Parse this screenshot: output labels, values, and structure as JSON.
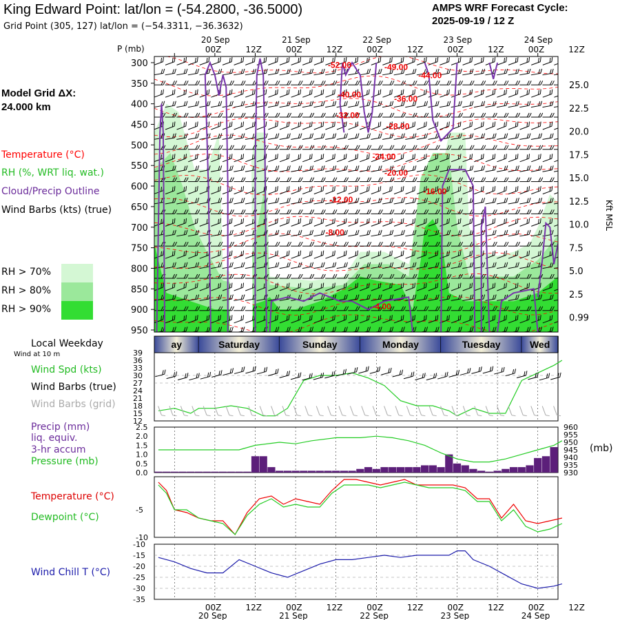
{
  "header": {
    "title": "King Edward Point:  lat/lon = (-54.2800, -36.5000)",
    "subtitle": "Grid Point (305, 127) lat/lon = (−54.3311, −36.3632)",
    "cycle_line1": "AMPS WRF Forecast Cycle:",
    "cycle_line2": "2025-09-19 / 12  Z"
  },
  "legend": {
    "model_grid_label": "Model Grid ΔX:",
    "model_grid_value": " 24.000 km",
    "temperature": "Temperature (°C)",
    "rh": "RH (%, WRT liq. wat.)",
    "cloud": "Cloud/Precip Outline",
    "wind": "Wind Barbs (kts) (true)",
    "rh70": "RH > 70%",
    "rh80": "RH > 80%",
    "rh90": "RH > 90%",
    "local_weekday": "Local Weekday",
    "wind_10m": "Wind at 10 m",
    "wind_spd": "Wind Spd (kts)",
    "wind_barbs_true": "Wind Barbs (true)",
    "wind_barbs_grid": "Wind Barbs (grid)",
    "precip1": "Precip (mm)",
    "precip2": "liq. equiv.",
    "precip3": "3-hr accum",
    "pressure": "Pressure (mb)",
    "pressure_unit": "(mb)",
    "temp2": "Temperature (°C)",
    "dewpoint": "Dewpoint (°C)",
    "windchill": "Wind Chill T (°C)"
  },
  "colors": {
    "rh70": "#d4f7d4",
    "rh80": "#9be89b",
    "rh90": "#33dd33",
    "temperature": "#ff0000",
    "dewpoint": "#22cc22",
    "cloud": "#7733aa",
    "precip": "#5c1f7a",
    "windchill": "#1a1aaa",
    "day_band_dark": "#3a4a9a",
    "day_band_light": "#f4f0d8",
    "grid_barbs": "#aaaaaa"
  },
  "time_axis": {
    "top_dates": [
      "20 Sep",
      "21 Sep",
      "22 Sep",
      "23 Sep",
      "24 Sep"
    ],
    "hour_labels": [
      "00Z",
      "12Z",
      "00Z",
      "12Z",
      "00Z",
      "12Z",
      "00Z",
      "12Z",
      "00Z",
      "12Z"
    ],
    "bottom_hours": [
      "00Z",
      "12Z",
      "00Z",
      "12Z",
      "00Z",
      "12Z",
      "00Z",
      "12Z",
      "00Z",
      "12Z"
    ],
    "bottom_dates": [
      "20 Sep",
      "21 Sep",
      "22 Sep",
      "23 Sep",
      "24 Sep"
    ]
  },
  "weekdays": [
    "ay",
    "Saturday",
    "Sunday",
    "Monday",
    "Tuesday",
    "Wed"
  ],
  "chart_data": [
    {
      "type": "heatmap",
      "name": "time-height cross section",
      "y_title": "P (mb)",
      "y_ticks": [
        "300",
        "350",
        "400",
        "450",
        "500",
        "550",
        "600",
        "650",
        "700",
        "750",
        "800",
        "850",
        "900",
        "950"
      ],
      "right_axis_title": "Kft MSL",
      "right_ticks": [
        "25.0",
        "22.5",
        "20.0",
        "17.5",
        "15.0",
        "12.5",
        "10.0",
        "7.5",
        "5.0",
        "2.5",
        "0.99"
      ],
      "ylim": [
        950,
        300
      ],
      "temperature_labels": [
        {
          "text": "-52.00",
          "day": 1.4,
          "p": 313
        },
        {
          "text": "-49.00",
          "day": 2.1,
          "p": 318
        },
        {
          "text": "-44.00",
          "day": 2.52,
          "p": 338
        },
        {
          "text": "-40.00",
          "day": 1.52,
          "p": 385
        },
        {
          "text": "-36.00",
          "day": 2.22,
          "p": 395
        },
        {
          "text": "-32.00",
          "day": 1.5,
          "p": 435
        },
        {
          "text": "-28.00",
          "day": 2.12,
          "p": 462
        },
        {
          "text": "-24.00",
          "day": 1.95,
          "p": 535
        },
        {
          "text": "-20.00",
          "day": 2.1,
          "p": 575
        },
        {
          "text": "-16.00",
          "day": 2.58,
          "p": 620
        },
        {
          "text": "-12.00",
          "day": 1.42,
          "p": 640
        },
        {
          "text": "-8.00",
          "day": 1.37,
          "p": 720
        },
        {
          "text": "-4.00",
          "day": 1.95,
          "p": 900
        }
      ]
    },
    {
      "type": "line",
      "name": "wind speed",
      "ylabel": "Wind Spd (kts)",
      "ylim": [
        12,
        39
      ],
      "y_ticks": [
        12,
        15,
        18,
        21,
        24,
        27,
        30,
        33,
        36,
        39
      ],
      "series": [
        {
          "name": "Wind Spd (kts)",
          "x": [
            -0.7,
            -0.5,
            -0.3,
            -0.2,
            0,
            0.2,
            0.4,
            0.6,
            0.75,
            0.9,
            1.1,
            1.3,
            1.5,
            1.7,
            1.9,
            2.1,
            2.3,
            2.5,
            2.7,
            2.9,
            3.0,
            3.2,
            3.4,
            3.6,
            3.8,
            4.0,
            4.2,
            4.3
          ],
          "values": [
            16,
            17,
            15,
            17,
            17,
            18,
            17,
            14,
            14,
            17,
            28,
            30,
            30,
            31,
            29,
            26,
            20,
            18,
            18,
            16,
            14,
            17,
            15,
            15,
            28,
            31,
            34,
            36
          ]
        }
      ]
    },
    {
      "type": "bar",
      "name": "precip and pressure",
      "ylabel": "Precip (mm)",
      "ylim": [
        0,
        2.5
      ],
      "y_ticks": [
        0.0,
        0.5,
        1.0,
        1.5,
        2.0,
        2.5
      ],
      "y2label": "Pressure (mb)",
      "y2lim": [
        930,
        960
      ],
      "y2_ticks": [
        930,
        935,
        940,
        945,
        950,
        955,
        960
      ],
      "precip_x": [
        -0.7,
        -0.6,
        -0.5,
        -0.4,
        -0.3,
        -0.2,
        -0.1,
        0,
        0.1,
        0.2,
        0.3,
        0.4,
        0.5,
        0.6,
        0.7,
        0.8,
        0.9,
        1.0,
        1.1,
        1.2,
        1.3,
        1.4,
        1.5,
        1.6,
        1.7,
        1.8,
        1.9,
        2.0,
        2.1,
        2.2,
        2.3,
        2.4,
        2.5,
        2.6,
        2.7,
        2.8,
        2.9,
        3.0,
        3.1,
        3.2,
        3.3,
        3.4,
        3.5,
        3.6,
        3.7,
        3.8,
        3.9,
        4.0,
        4.1,
        4.2
      ],
      "precip": [
        0.05,
        0.05,
        0.05,
        0.05,
        0.05,
        0.05,
        0.05,
        0.05,
        0.05,
        0.05,
        0.05,
        0.05,
        0.9,
        0.9,
        0.3,
        0.1,
        0.1,
        0.1,
        0.1,
        0.1,
        0.1,
        0.1,
        0.1,
        0.1,
        0.1,
        0.2,
        0.3,
        0.2,
        0.3,
        0.3,
        0.3,
        0.3,
        0.3,
        0.4,
        0.4,
        0.3,
        1.0,
        0.5,
        0.4,
        0.2,
        0.1,
        0.05,
        0.1,
        0.2,
        0.3,
        0.3,
        0.4,
        0.8,
        0.9,
        1.4
      ],
      "pressure_x": [
        -0.7,
        -0.3,
        0.0,
        0.3,
        0.5,
        0.8,
        1.0,
        1.2,
        1.5,
        1.8,
        2.0,
        2.2,
        2.4,
        2.6,
        2.8,
        3.0,
        3.2,
        3.4,
        3.6,
        3.8,
        4.0,
        4.2,
        4.3
      ],
      "pressure": [
        945,
        945,
        945,
        945,
        948,
        950,
        949,
        951,
        953,
        953,
        954,
        953,
        951,
        948,
        943,
        939,
        937,
        937,
        939,
        942,
        945,
        948,
        951
      ]
    },
    {
      "type": "line",
      "name": "temperature and dewpoint",
      "ylim": [
        -10,
        1
      ],
      "y_ticks": [
        -10,
        -5
      ],
      "series": [
        {
          "name": "Temperature (°C)",
          "x": [
            -0.7,
            -0.6,
            -0.5,
            -0.35,
            -0.2,
            -0.05,
            0.1,
            0.25,
            0.4,
            0.55,
            0.7,
            0.85,
            1.0,
            1.15,
            1.3,
            1.45,
            1.6,
            1.75,
            1.9,
            2.05,
            2.2,
            2.35,
            2.5,
            2.65,
            2.8,
            2.95,
            3.1,
            3.25,
            3.4,
            3.55,
            3.7,
            3.85,
            4.0,
            4.15,
            4.3
          ],
          "values": [
            0,
            -1.5,
            -5,
            -5.5,
            -6.5,
            -7,
            -7,
            -9.5,
            -5.5,
            -3,
            -2.5,
            -4,
            -3,
            -3.5,
            -4,
            -1.5,
            0.5,
            0.5,
            0,
            -0.5,
            0,
            0.5,
            -0.5,
            -0.5,
            -0.5,
            -0.5,
            -1,
            -3,
            -3,
            -6.5,
            -4,
            -7,
            -7.5,
            -7,
            -6.5
          ]
        },
        {
          "name": "Dewpoint (°C)",
          "x": [
            -0.7,
            -0.6,
            -0.5,
            -0.35,
            -0.2,
            -0.05,
            0.1,
            0.25,
            0.4,
            0.55,
            0.7,
            0.85,
            1.0,
            1.15,
            1.3,
            1.45,
            1.6,
            1.75,
            1.9,
            2.05,
            2.2,
            2.35,
            2.5,
            2.65,
            2.8,
            2.95,
            3.1,
            3.25,
            3.4,
            3.55,
            3.7,
            3.85,
            4.0,
            4.15,
            4.3
          ],
          "values": [
            -0.5,
            -2,
            -5,
            -5,
            -6.5,
            -7,
            -7.5,
            -9.5,
            -6,
            -4,
            -3,
            -4.5,
            -4,
            -4.5,
            -4.5,
            -2,
            -0.5,
            -0.5,
            -0.5,
            -1,
            -0.5,
            0,
            -0.5,
            -1,
            -1,
            -1,
            -1.5,
            -3.5,
            -3.5,
            -7,
            -5,
            -8,
            -9,
            -8.5,
            -7.5
          ]
        }
      ]
    },
    {
      "type": "line",
      "name": "wind chill",
      "ylabel": "Wind Chill T (°C)",
      "ylim": [
        -35,
        -10
      ],
      "y_ticks": [
        -10,
        -15,
        -20,
        -25,
        -30,
        -35
      ],
      "series": [
        {
          "name": "Wind Chill T (°C)",
          "x": [
            -0.7,
            -0.5,
            -0.3,
            -0.1,
            0.1,
            0.3,
            0.5,
            0.7,
            0.9,
            1.1,
            1.3,
            1.5,
            1.7,
            1.9,
            2.1,
            2.3,
            2.5,
            2.7,
            2.9,
            3.0,
            3.1,
            3.2,
            3.4,
            3.6,
            3.8,
            4.0,
            4.2,
            4.3
          ],
          "values": [
            -16,
            -18,
            -21,
            -23,
            -23,
            -17,
            -20,
            -23,
            -25,
            -22,
            -19,
            -17,
            -17,
            -16,
            -15,
            -16,
            -15,
            -15,
            -15,
            -13,
            -13,
            -17,
            -20,
            -24,
            -28,
            -30,
            -29,
            -28
          ]
        }
      ]
    }
  ]
}
